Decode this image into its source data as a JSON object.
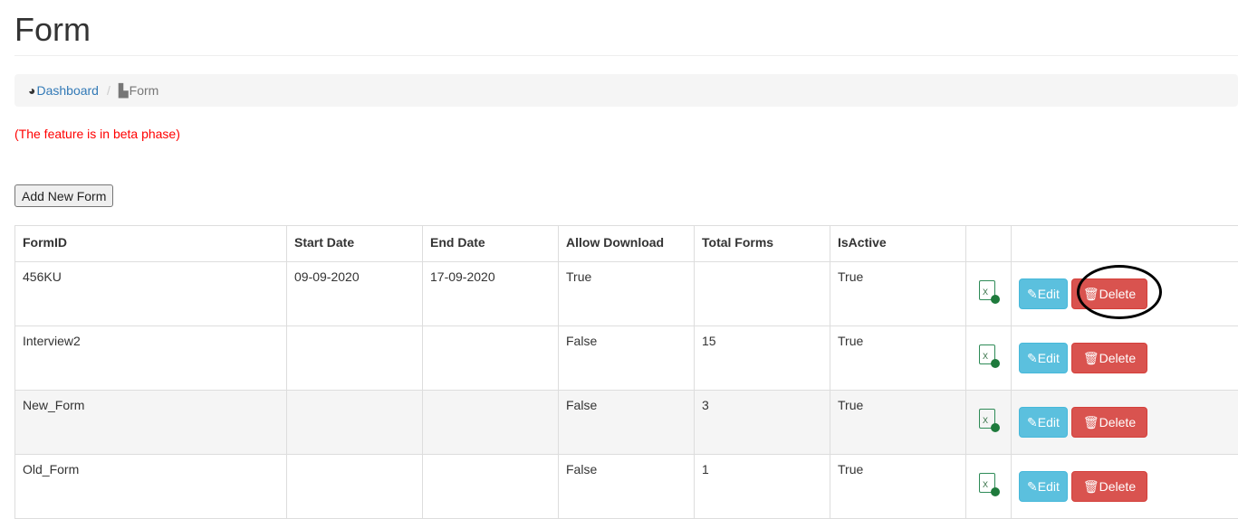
{
  "page": {
    "title": "Form",
    "beta_note": "(The feature is in beta phase)",
    "add_button": "Add New Form"
  },
  "breadcrumb": {
    "items": [
      {
        "label": "Dashboard",
        "icon": "dashboard-icon"
      },
      {
        "label": "Form",
        "icon": "file-icon"
      }
    ],
    "separator": "/"
  },
  "table": {
    "headers": [
      "FormID",
      "Start Date",
      "End Date",
      "Allow Download",
      "Total Forms",
      "IsActive",
      "",
      ""
    ],
    "rows": [
      {
        "form_id": "456KU",
        "start": "09-09-2020",
        "end": "17-09-2020",
        "allow": "True",
        "total": "",
        "active": "True"
      },
      {
        "form_id": "Interview2",
        "start": "",
        "end": "",
        "allow": "False",
        "total": "15",
        "active": "True"
      },
      {
        "form_id": "New_Form",
        "start": "",
        "end": "",
        "allow": "False",
        "total": "3",
        "active": "True"
      },
      {
        "form_id": "Old_Form",
        "start": "",
        "end": "",
        "allow": "False",
        "total": "1",
        "active": "True"
      }
    ],
    "edit_label": "Edit",
    "delete_label": "Delete",
    "excel_icon_text": "X"
  },
  "colors": {
    "edit": "#5bc0de",
    "delete": "#d9534f",
    "beta": "#ff0000",
    "link": "#337ab7"
  }
}
